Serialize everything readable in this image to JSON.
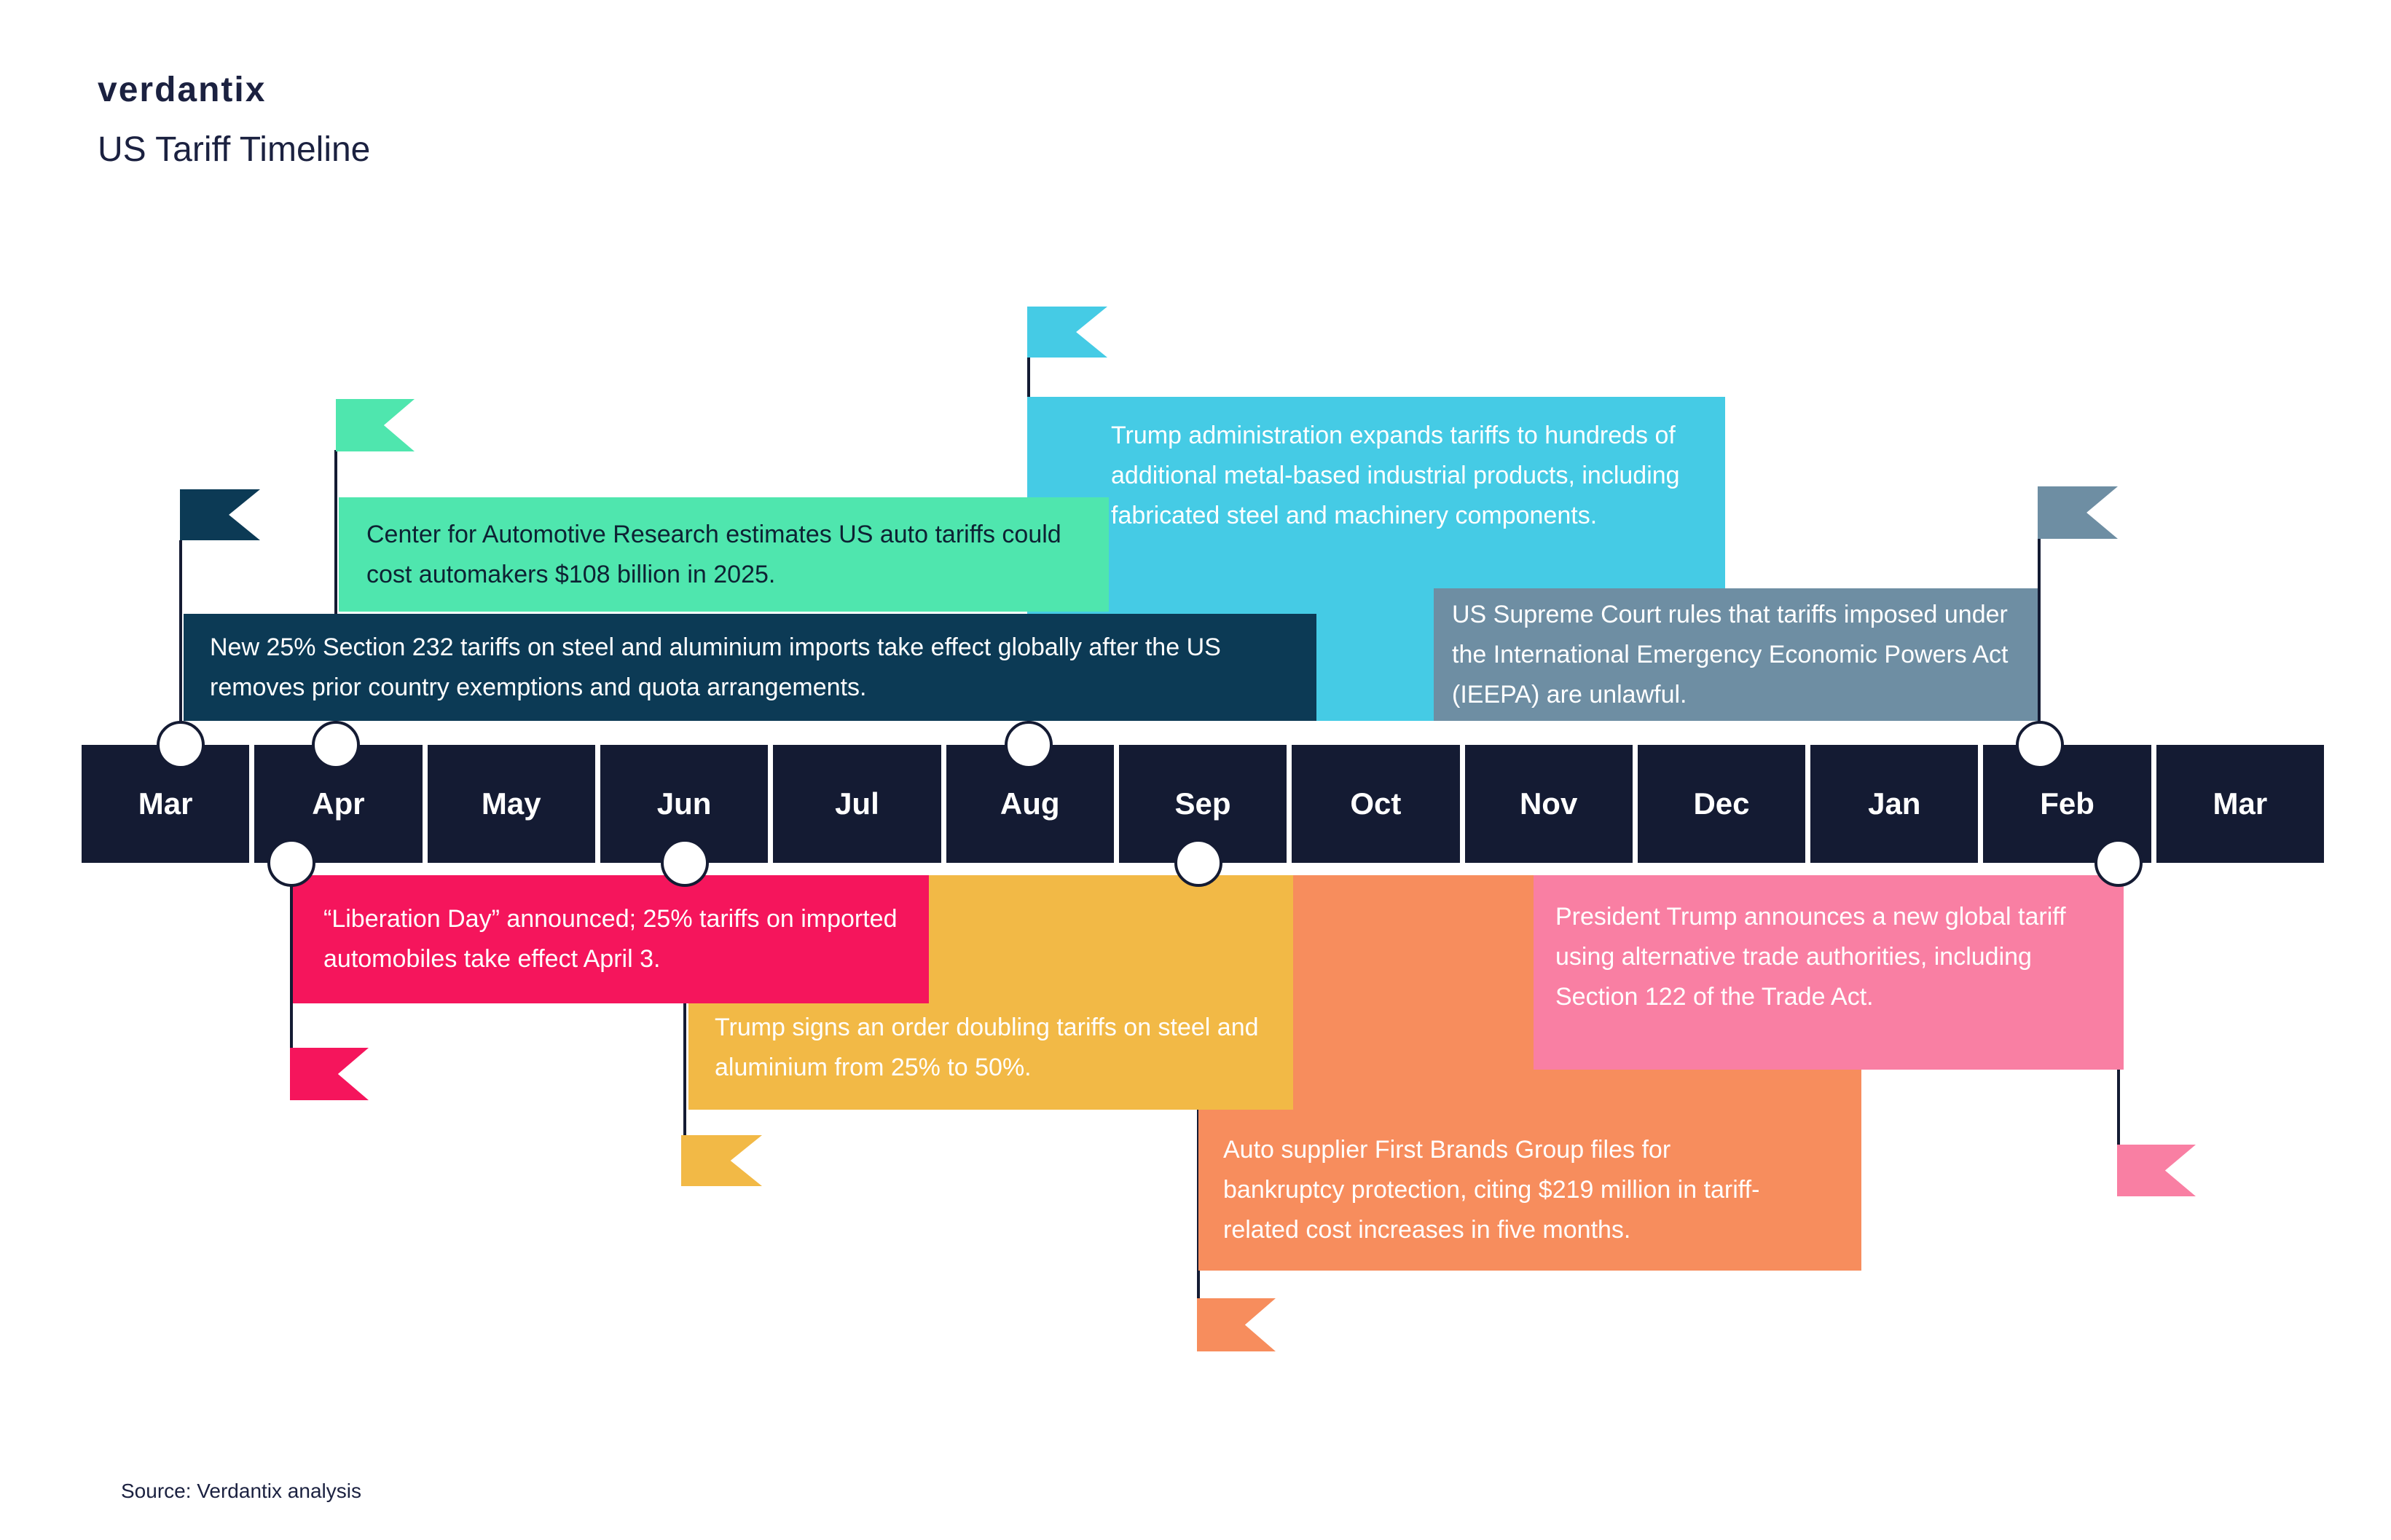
{
  "header": {
    "logo": "verdantix",
    "title": "US Tariff Timeline"
  },
  "timeline": {
    "months": [
      "Mar",
      "Apr",
      "May",
      "Jun",
      "Jul",
      "Aug",
      "Sep",
      "Oct",
      "Nov",
      "Dec",
      "Jan",
      "Feb",
      "Mar"
    ]
  },
  "events": [
    {
      "id": "section-232",
      "position": "above",
      "month_anchor": "Mar",
      "color": "#0C3A55",
      "text": "New 25% Section 232 tariffs on steel and aluminium imports take effect globally after the US removes prior country exemptions and quota arrangements."
    },
    {
      "id": "car-research",
      "position": "above",
      "month_anchor": "Apr",
      "color": "#4FE6AE",
      "text": "Center for Automotive Research estimates US auto tariffs could cost automakers $108 billion in 2025."
    },
    {
      "id": "expand-tariffs",
      "position": "above",
      "month_anchor": "Aug",
      "color": "#45CBE5",
      "text": "Trump administration expands tariffs to hundreds of additional metal-based industrial products, including fabricated steel and machinery components."
    },
    {
      "id": "scotus-ieepa",
      "position": "above",
      "month_anchor": "Feb",
      "color": "#6E8EA3",
      "text": "US Supreme Court rules that tariffs imposed under the International Emergency Economic Powers Act (IEEPA) are unlawful."
    },
    {
      "id": "liberation-day",
      "position": "below",
      "month_anchor": "Apr",
      "color": "#F5155C",
      "text": "“Liberation Day” announced; 25% tariffs on imported automobiles take effect April 3."
    },
    {
      "id": "doubling-order",
      "position": "below",
      "month_anchor": "Jun",
      "color": "#F2B946",
      "text": "Trump signs an order doubling tariffs on steel and aluminium from 25% to 50%."
    },
    {
      "id": "first-brands",
      "position": "below",
      "month_anchor": "Sep",
      "color": "#F78D5D",
      "text": "Auto supplier First Brands Group files for bankruptcy protection, citing $219 million in tariff-related cost increases in five months."
    },
    {
      "id": "global-tariff",
      "position": "below",
      "month_anchor": "Feb",
      "color": "#F97FA3",
      "text": "President Trump announces a new global tariff using alternative trade authorities, including Section 122 of the Trade Act."
    }
  ],
  "footer": {
    "source": "Source: Verdantix analysis"
  },
  "colors": {
    "bar_segment": "#141B33",
    "connector": "#141B33",
    "node_fill": "#FFFFFF",
    "ink": "#1B2140",
    "background": "#FFFFFF"
  }
}
